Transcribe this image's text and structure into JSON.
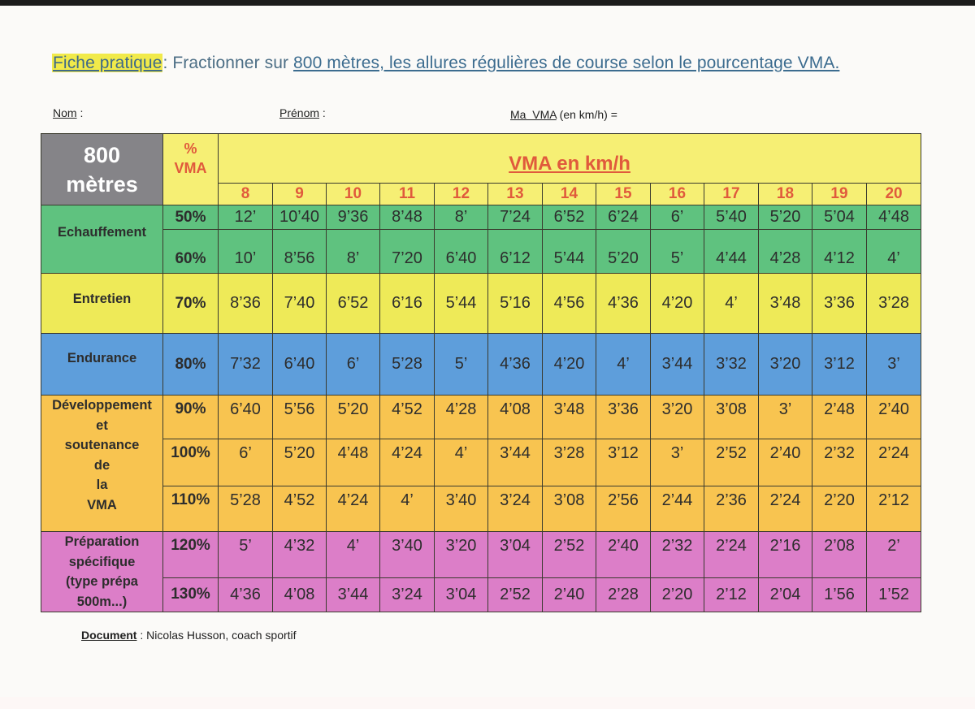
{
  "title": {
    "highlight": "Fiche pratique",
    "sep": ": Fractionner sur ",
    "distance_link": "800 mètres,",
    "rest": " les allures régulières de course selon le pourcentage VMA."
  },
  "fields": {
    "nom": "Nom",
    "nom_sep": " :",
    "prenom": "Prénom",
    "prenom_sep": " :",
    "vma": "Ma  VMA",
    "vma_sep": " (en km/h) ="
  },
  "table": {
    "corner_line1": "800",
    "corner_line2": "mètres",
    "pct_header_line1": "%",
    "pct_header_line2": "VMA",
    "vma_header": "VMA en km/h",
    "speeds": [
      "8",
      "9",
      "10",
      "11",
      "12",
      "13",
      "14",
      "15",
      "16",
      "17",
      "18",
      "19",
      "20"
    ],
    "categories": [
      {
        "name": "echauffement",
        "lines": [
          "Echauffement"
        ],
        "color": "#5fc27f"
      },
      {
        "name": "entretien",
        "lines": [
          "Entretien"
        ],
        "color": "#eeea58"
      },
      {
        "name": "endurance",
        "lines": [
          "Endurance"
        ],
        "color": "#5e9edb"
      },
      {
        "name": "developpement",
        "lines": [
          "Développement",
          "et",
          "soutenance",
          "de",
          "la",
          "VMA"
        ],
        "color": "#f8c450"
      },
      {
        "name": "preparation",
        "lines": [
          "Préparation",
          "spécifique",
          "(type prépa",
          "500m...)"
        ],
        "color": "#dc7ec8"
      }
    ],
    "rows": [
      {
        "pct": "50%",
        "values": [
          "12’",
          "10’40",
          "9’36",
          "8’48",
          "8’",
          "7’24",
          "6’52",
          "6’24",
          "6’",
          "5’40",
          "5’20",
          "5’04",
          "4’48"
        ]
      },
      {
        "pct": "60%",
        "values": [
          "10’",
          "8’56",
          "8’",
          "7’20",
          "6’40",
          "6’12",
          "5’44",
          "5’20",
          "5’",
          "4’44",
          "4’28",
          "4’12",
          "4’"
        ]
      },
      {
        "pct": "70%",
        "values": [
          "8’36",
          "7’40",
          "6’52",
          "6’16",
          "5’44",
          "5’16",
          "4’56",
          "4’36",
          "4’20",
          "4’",
          "3’48",
          "3’36",
          "3’28"
        ]
      },
      {
        "pct": "80%",
        "values": [
          "7’32",
          "6’40",
          "6’",
          "5’28",
          "5’",
          "4’36",
          "4’20",
          "4’",
          "3’44",
          "3’32",
          "3’20",
          "3’12",
          "3’"
        ]
      },
      {
        "pct": "90%",
        "values": [
          "6’40",
          "5’56",
          "5’20",
          "4’52",
          "4’28",
          "4’08",
          "3’48",
          "3’36",
          "3’20",
          "3’08",
          "3’",
          "2’48",
          "2’40"
        ]
      },
      {
        "pct": "100%",
        "values": [
          "6’",
          "5’20",
          "4’48",
          "4’24",
          "4’",
          "3’44",
          "3’28",
          "3’12",
          "3’",
          "2’52",
          "2’40",
          "2’32",
          "2’24"
        ]
      },
      {
        "pct": "110%",
        "values": [
          "5’28",
          "4’52",
          "4’24",
          "4’",
          "3’40",
          "3’24",
          "3’08",
          "2’56",
          "2’44",
          "2’36",
          "2’24",
          "2’20",
          "2’12"
        ]
      },
      {
        "pct": "120%",
        "values": [
          "5’",
          "4’32",
          "4’",
          "3’40",
          "3’20",
          "3’04",
          "2’52",
          "2’40",
          "2’32",
          "2’24",
          "2’16",
          "2’08",
          "2’"
        ]
      },
      {
        "pct": "130%",
        "values": [
          "4’36",
          "4’08",
          "3’44",
          "3’24",
          "3’04",
          "2’52",
          "2’40",
          "2’28",
          "2’20",
          "2’12",
          "2’04",
          "1’56",
          "1’52"
        ]
      }
    ]
  },
  "footer": {
    "label": "Document",
    "text": " : Nicolas Husson, coach sportif"
  },
  "colors": {
    "header_gray": "#858488",
    "header_yellow": "#f6ef74",
    "accent_red": "#e05a3c",
    "title_blue": "#4c6e85",
    "highlight_yellow": "#f1ea4a"
  }
}
